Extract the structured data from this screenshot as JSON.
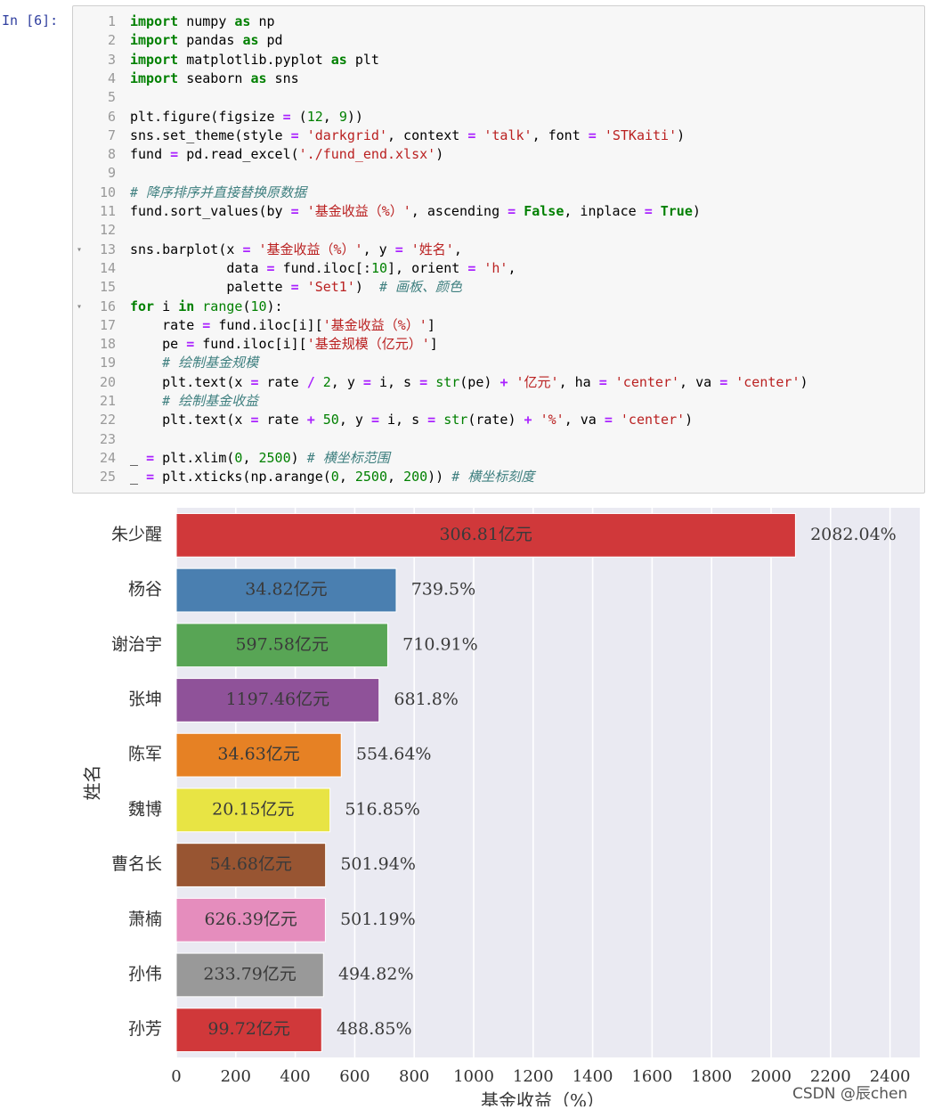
{
  "prompt": "In  [6]:",
  "code": [
    {
      "n": "1",
      "t": [
        [
          "kw",
          "import"
        ],
        [
          "",
          " numpy "
        ],
        [
          "kw",
          "as"
        ],
        [
          "",
          " np"
        ]
      ]
    },
    {
      "n": "2",
      "t": [
        [
          "kw",
          "import"
        ],
        [
          "",
          " pandas "
        ],
        [
          "kw",
          "as"
        ],
        [
          "",
          " pd"
        ]
      ]
    },
    {
      "n": "3",
      "t": [
        [
          "kw",
          "import"
        ],
        [
          "",
          " matplotlib.pyplot "
        ],
        [
          "kw",
          "as"
        ],
        [
          "",
          " plt"
        ]
      ]
    },
    {
      "n": "4",
      "t": [
        [
          "kw",
          "import"
        ],
        [
          "",
          " seaborn "
        ],
        [
          "kw",
          "as"
        ],
        [
          "",
          " sns"
        ]
      ]
    },
    {
      "n": "5",
      "t": []
    },
    {
      "n": "6",
      "t": [
        [
          "",
          "plt.figure(figsize "
        ],
        [
          "op",
          "="
        ],
        [
          "",
          " ("
        ],
        [
          "num",
          "12"
        ],
        [
          "",
          ", "
        ],
        [
          "num",
          "9"
        ],
        [
          "",
          "))"
        ]
      ]
    },
    {
      "n": "7",
      "t": [
        [
          "",
          "sns.set_theme(style "
        ],
        [
          "op",
          "="
        ],
        [
          "",
          " "
        ],
        [
          "str",
          "'darkgrid'"
        ],
        [
          "",
          ", context "
        ],
        [
          "op",
          "="
        ],
        [
          "",
          " "
        ],
        [
          "str",
          "'talk'"
        ],
        [
          "",
          ", font "
        ],
        [
          "op",
          "="
        ],
        [
          "",
          " "
        ],
        [
          "str",
          "'STKaiti'"
        ],
        [
          "",
          ")"
        ]
      ]
    },
    {
      "n": "8",
      "t": [
        [
          "",
          "fund "
        ],
        [
          "op",
          "="
        ],
        [
          "",
          " pd.read_excel("
        ],
        [
          "str",
          "'./fund_end.xlsx'"
        ],
        [
          "",
          ")"
        ]
      ]
    },
    {
      "n": "9",
      "t": []
    },
    {
      "n": "10",
      "t": [
        [
          "cm",
          "# 降序排序并直接替换原数据"
        ]
      ]
    },
    {
      "n": "11",
      "t": [
        [
          "",
          "fund.sort_values(by "
        ],
        [
          "op",
          "="
        ],
        [
          "",
          " "
        ],
        [
          "str",
          "'基金收益（%）'"
        ],
        [
          "",
          ", ascending "
        ],
        [
          "op",
          "="
        ],
        [
          "",
          " "
        ],
        [
          "kw",
          "False"
        ],
        [
          "",
          ", inplace "
        ],
        [
          "op",
          "="
        ],
        [
          "",
          " "
        ],
        [
          "kw",
          "True"
        ],
        [
          "",
          ")"
        ]
      ]
    },
    {
      "n": "12",
      "t": []
    },
    {
      "n": "13",
      "fold": true,
      "t": [
        [
          "",
          "sns.barplot(x "
        ],
        [
          "op",
          "="
        ],
        [
          "",
          " "
        ],
        [
          "str",
          "'基金收益（%）'"
        ],
        [
          "",
          ", y "
        ],
        [
          "op",
          "="
        ],
        [
          "",
          " "
        ],
        [
          "str",
          "'姓名'"
        ],
        [
          "",
          ","
        ]
      ]
    },
    {
      "n": "14",
      "t": [
        [
          "",
          "            data "
        ],
        [
          "op",
          "="
        ],
        [
          "",
          " fund.iloc[:"
        ],
        [
          "num",
          "10"
        ],
        [
          "",
          "], orient "
        ],
        [
          "op",
          "="
        ],
        [
          "",
          " "
        ],
        [
          "str",
          "'h'"
        ],
        [
          "",
          ","
        ]
      ]
    },
    {
      "n": "15",
      "t": [
        [
          "",
          "            palette "
        ],
        [
          "op",
          "="
        ],
        [
          "",
          " "
        ],
        [
          "str",
          "'Set1'"
        ],
        [
          "",
          ")  "
        ],
        [
          "cm",
          "# 画板、颜色"
        ]
      ]
    },
    {
      "n": "16",
      "fold": true,
      "t": [
        [
          "kw",
          "for"
        ],
        [
          "",
          " i "
        ],
        [
          "kw",
          "in"
        ],
        [
          "",
          " "
        ],
        [
          "bi",
          "range"
        ],
        [
          "",
          "("
        ],
        [
          "num",
          "10"
        ],
        [
          "",
          "):"
        ]
      ]
    },
    {
      "n": "17",
      "t": [
        [
          "",
          "    rate "
        ],
        [
          "op",
          "="
        ],
        [
          "",
          " fund.iloc[i]["
        ],
        [
          "str",
          "'基金收益（%）'"
        ],
        [
          "",
          "]"
        ]
      ]
    },
    {
      "n": "18",
      "t": [
        [
          "",
          "    pe "
        ],
        [
          "op",
          "="
        ],
        [
          "",
          " fund.iloc[i]["
        ],
        [
          "str",
          "'基金规模（亿元）'"
        ],
        [
          "",
          "]"
        ]
      ]
    },
    {
      "n": "19",
      "t": [
        [
          "",
          "    "
        ],
        [
          "cm",
          "# 绘制基金规模"
        ]
      ]
    },
    {
      "n": "20",
      "t": [
        [
          "",
          "    plt.text(x "
        ],
        [
          "op",
          "="
        ],
        [
          "",
          " rate "
        ],
        [
          "op",
          "/"
        ],
        [
          "",
          " "
        ],
        [
          "num",
          "2"
        ],
        [
          "",
          ", y "
        ],
        [
          "op",
          "="
        ],
        [
          "",
          " i, s "
        ],
        [
          "op",
          "="
        ],
        [
          "",
          " "
        ],
        [
          "bi",
          "str"
        ],
        [
          "",
          "(pe) "
        ],
        [
          "op",
          "+"
        ],
        [
          "",
          " "
        ],
        [
          "str",
          "'亿元'"
        ],
        [
          "",
          ", ha "
        ],
        [
          "op",
          "="
        ],
        [
          "",
          " "
        ],
        [
          "str",
          "'center'"
        ],
        [
          "",
          ", va "
        ],
        [
          "op",
          "="
        ],
        [
          "",
          " "
        ],
        [
          "str",
          "'center'"
        ],
        [
          "",
          ")"
        ]
      ]
    },
    {
      "n": "21",
      "t": [
        [
          "",
          "    "
        ],
        [
          "cm",
          "# 绘制基金收益"
        ]
      ]
    },
    {
      "n": "22",
      "t": [
        [
          "",
          "    plt.text(x "
        ],
        [
          "op",
          "="
        ],
        [
          "",
          " rate "
        ],
        [
          "op",
          "+"
        ],
        [
          "",
          " "
        ],
        [
          "num",
          "50"
        ],
        [
          "",
          ", y "
        ],
        [
          "op",
          "="
        ],
        [
          "",
          " i, s "
        ],
        [
          "op",
          "="
        ],
        [
          "",
          " "
        ],
        [
          "bi",
          "str"
        ],
        [
          "",
          "(rate) "
        ],
        [
          "op",
          "+"
        ],
        [
          "",
          " "
        ],
        [
          "str",
          "'%'"
        ],
        [
          "",
          ", va "
        ],
        [
          "op",
          "="
        ],
        [
          "",
          " "
        ],
        [
          "str",
          "'center'"
        ],
        [
          "",
          ")"
        ]
      ]
    },
    {
      "n": "23",
      "t": []
    },
    {
      "n": "24",
      "t": [
        [
          "",
          "_ "
        ],
        [
          "op",
          "="
        ],
        [
          "",
          " plt.xlim("
        ],
        [
          "num",
          "0"
        ],
        [
          "",
          ", "
        ],
        [
          "num",
          "2500"
        ],
        [
          "",
          ") "
        ],
        [
          "cm",
          "# 横坐标范围"
        ]
      ]
    },
    {
      "n": "25",
      "t": [
        [
          "",
          "_ "
        ],
        [
          "op",
          "="
        ],
        [
          "",
          " plt.xticks(np.arange("
        ],
        [
          "num",
          "0"
        ],
        [
          "",
          ", "
        ],
        [
          "num",
          "2500"
        ],
        [
          "",
          ", "
        ],
        [
          "num",
          "200"
        ],
        [
          "",
          ")) "
        ],
        [
          "cm",
          "# 横坐标刻度"
        ]
      ]
    }
  ],
  "chart_data": {
    "type": "bar",
    "orientation": "horizontal",
    "categories": [
      "朱少醒",
      "杨谷",
      "谢治宇",
      "张坤",
      "陈军",
      "魏博",
      "曹名长",
      "萧楠",
      "孙伟",
      "孙芳"
    ],
    "values": [
      2082.04,
      739.5,
      710.91,
      681.8,
      554.64,
      516.85,
      501.94,
      501.19,
      494.82,
      488.85
    ],
    "value_labels": [
      "2082.04%",
      "739.5%",
      "710.91%",
      "681.8%",
      "554.64%",
      "516.85%",
      "501.94%",
      "501.19%",
      "494.82%",
      "488.85%"
    ],
    "bar_labels": [
      "306.81亿元",
      "34.82亿元",
      "597.58亿元",
      "1197.46亿元",
      "34.63亿元",
      "20.15亿元",
      "54.68亿元",
      "626.39亿元",
      "233.79亿元",
      "99.72亿元"
    ],
    "colors": [
      "#d0383a",
      "#4a7fb0",
      "#58a555",
      "#8f5299",
      "#e68124",
      "#e8e444",
      "#985532",
      "#e58dbd",
      "#999999",
      "#d0383a"
    ],
    "xlabel": "基金收益（%）",
    "ylabel": "姓名",
    "xlim": [
      0,
      2500
    ],
    "xticks": [
      0,
      200,
      400,
      600,
      800,
      1000,
      1200,
      1400,
      1600,
      1800,
      2000,
      2200,
      2400
    ],
    "grid": true,
    "background": "#eaeaf2"
  },
  "watermark": "CSDN @辰chen"
}
